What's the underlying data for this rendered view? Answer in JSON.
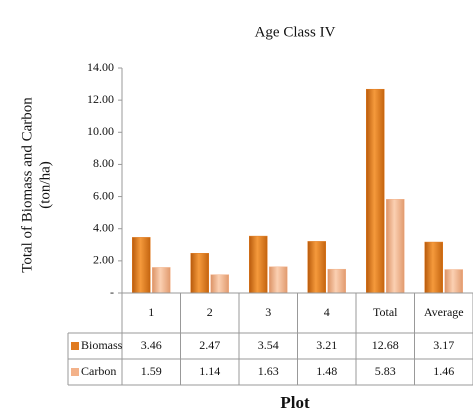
{
  "chart_data": {
    "type": "bar",
    "title": "Age Class IV",
    "ylabel": [
      "Total of Biomass and Carbon",
      "(ton/ha)"
    ],
    "xlabel": "Plot",
    "categories": [
      "1",
      "2",
      "3",
      "4",
      "Total",
      "Average"
    ],
    "series": [
      {
        "name": "Biomass",
        "color": "#e07a1f",
        "values": [
          3.46,
          2.47,
          3.54,
          3.21,
          12.68,
          3.17
        ]
      },
      {
        "name": "Carbon",
        "color": "#f3b28a",
        "values": [
          1.59,
          1.14,
          1.63,
          1.48,
          5.83,
          1.46
        ]
      }
    ],
    "ylim": [
      0,
      14
    ],
    "yticks": [
      {
        "value": 0,
        "label": "-"
      },
      {
        "value": 2,
        "label": "2.00"
      },
      {
        "value": 4,
        "label": "4.00"
      },
      {
        "value": 6,
        "label": "6.00"
      },
      {
        "value": 8,
        "label": "8.00"
      },
      {
        "value": 10,
        "label": "10.00"
      },
      {
        "value": 12,
        "label": "12.00"
      },
      {
        "value": 14,
        "label": "14.00"
      }
    ],
    "grid": false,
    "data_table": true
  }
}
